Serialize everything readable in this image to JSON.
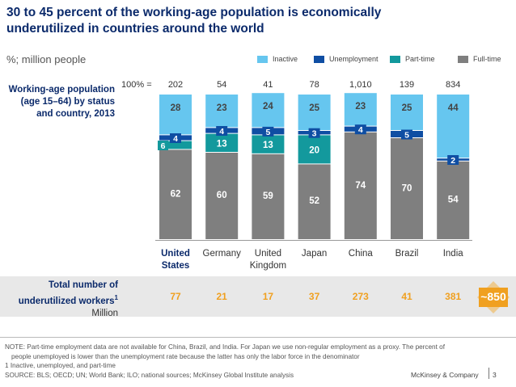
{
  "title": "30 to 45 percent of the working-age population is economically underutilized in countries around the world",
  "subtitle": "%; million people",
  "side_label": "Working-age population (age 15–64) by status and country, 2013",
  "total_label": "Total number of underutilized workers",
  "total_footnote_mark": "1",
  "total_unit": "Million",
  "badge_value": "~850",
  "legend": [
    {
      "label": "Inactive",
      "color": "#66c6ef"
    },
    {
      "label": "Unemployment",
      "color": "#0f4ea3"
    },
    {
      "label": "Part-time",
      "color": "#13999d"
    },
    {
      "label": "Full-time",
      "color": "#7f7f7f"
    }
  ],
  "chart_data": {
    "type": "bar",
    "stacked": true,
    "title": "30 to 45 percent of the working-age population is economically underutilized in countries around the world",
    "ylabel": "%",
    "ylim": [
      0,
      100
    ],
    "hundred_label": "100% =",
    "categories": [
      "United States",
      "Germany",
      "United Kingdom",
      "Japan",
      "China",
      "Brazil",
      "India"
    ],
    "category_lines": [
      [
        "United",
        "States"
      ],
      [
        "Germany"
      ],
      [
        "United",
        "Kingdom"
      ],
      [
        "Japan"
      ],
      [
        "China"
      ],
      [
        "Brazil"
      ],
      [
        "India"
      ]
    ],
    "population_totals": [
      "202",
      "54",
      "41",
      "78",
      "1,010",
      "139",
      "834"
    ],
    "series": [
      {
        "name": "Full-time",
        "values": [
          62,
          60,
          59,
          52,
          74,
          70,
          54
        ]
      },
      {
        "name": "Part-time",
        "values": [
          6,
          13,
          13,
          20,
          null,
          null,
          null
        ]
      },
      {
        "name": "Unemployment",
        "values": [
          4,
          4,
          5,
          3,
          4,
          5,
          2
        ]
      },
      {
        "name": "Inactive",
        "values": [
          28,
          23,
          24,
          25,
          23,
          25,
          44
        ]
      }
    ],
    "underutilized_totals": [
      "77",
      "21",
      "17",
      "37",
      "273",
      "41",
      "381"
    ]
  },
  "notes": {
    "note": "NOTE: Part-time employment data are not available for China, Brazil, and India. For Japan we use non-regular employment as a proxy. The percent of",
    "note_cont": "people unemployed is lower than the unemployment rate because the latter has only the labor force in the denominator",
    "footnote": "1 Inactive, unemployed, and part-time",
    "source": "SOURCE: BLS; OECD; UN; World Bank; ILO; national sources; McKinsey Global Institute analysis"
  },
  "footer": {
    "brand": "McKinsey & Company",
    "page": "3"
  }
}
